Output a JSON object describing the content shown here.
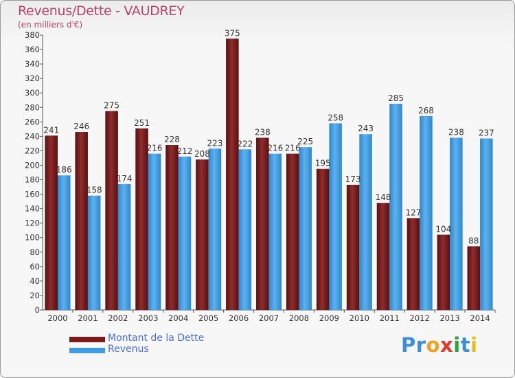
{
  "header": {
    "title": "Revenus/Dette - VAUDREY",
    "subtitle": "(en milliers d'€)"
  },
  "chart_data": {
    "type": "bar",
    "title": "Revenus/Dette - VAUDREY",
    "ylabel": "(en milliers d'€)",
    "categories": [
      "2000",
      "2001",
      "2002",
      "2003",
      "2004",
      "2005",
      "2006",
      "2007",
      "2008",
      "2009",
      "2010",
      "2011",
      "2012",
      "2013",
      "2014"
    ],
    "series": [
      {
        "name": "Montant de la Dette",
        "color": "#7a1a1a",
        "values": [
          241,
          246,
          275,
          251,
          228,
          208,
          375,
          238,
          216,
          195,
          173,
          148,
          127,
          104,
          88
        ]
      },
      {
        "name": "Revenus",
        "color": "#3f9be0",
        "values": [
          186,
          158,
          174,
          216,
          212,
          223,
          222,
          216,
          225,
          258,
          243,
          285,
          268,
          238,
          237
        ]
      }
    ],
    "ylim": [
      0,
      380
    ],
    "ytick_step": 20,
    "grid": false,
    "legend_position": "bottom-left"
  },
  "legend": {
    "items": [
      {
        "label": "Montant de la Dette",
        "color": "#7a1a1a"
      },
      {
        "label": "Revenus",
        "color": "#3f9be0"
      }
    ]
  },
  "brand": {
    "letters": [
      "P",
      "r",
      "o",
      "x",
      "i",
      "t",
      "i"
    ],
    "colors": [
      "#3a8fd6",
      "#3a8fd6",
      "#f0a020",
      "#e23a2a",
      "#2aa33a",
      "#3a8fd6",
      "#e8c020"
    ]
  }
}
